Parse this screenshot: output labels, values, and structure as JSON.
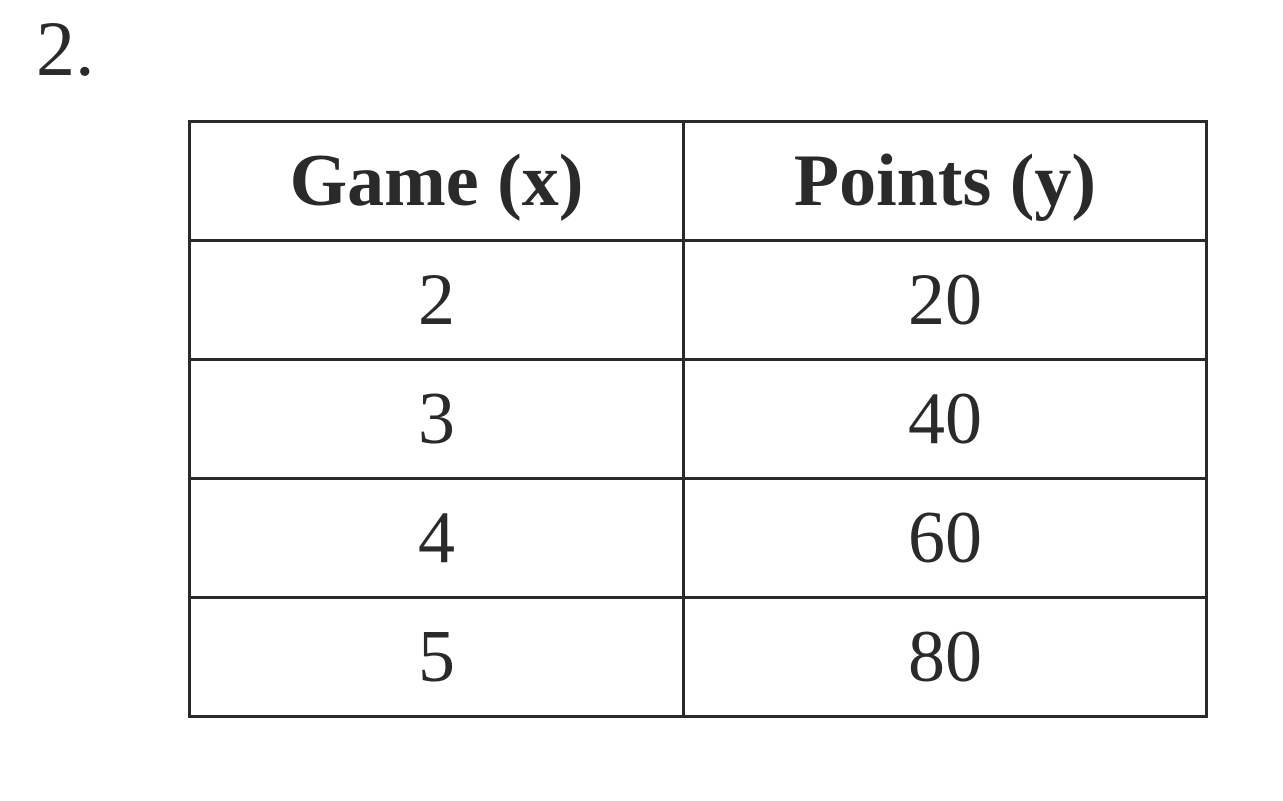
{
  "problem_number": "2.",
  "table": {
    "headers": [
      "Game (x)",
      "Points (y)"
    ],
    "rows": [
      [
        "2",
        "20"
      ],
      [
        "3",
        "40"
      ],
      [
        "4",
        "60"
      ],
      [
        "5",
        "80"
      ]
    ]
  }
}
